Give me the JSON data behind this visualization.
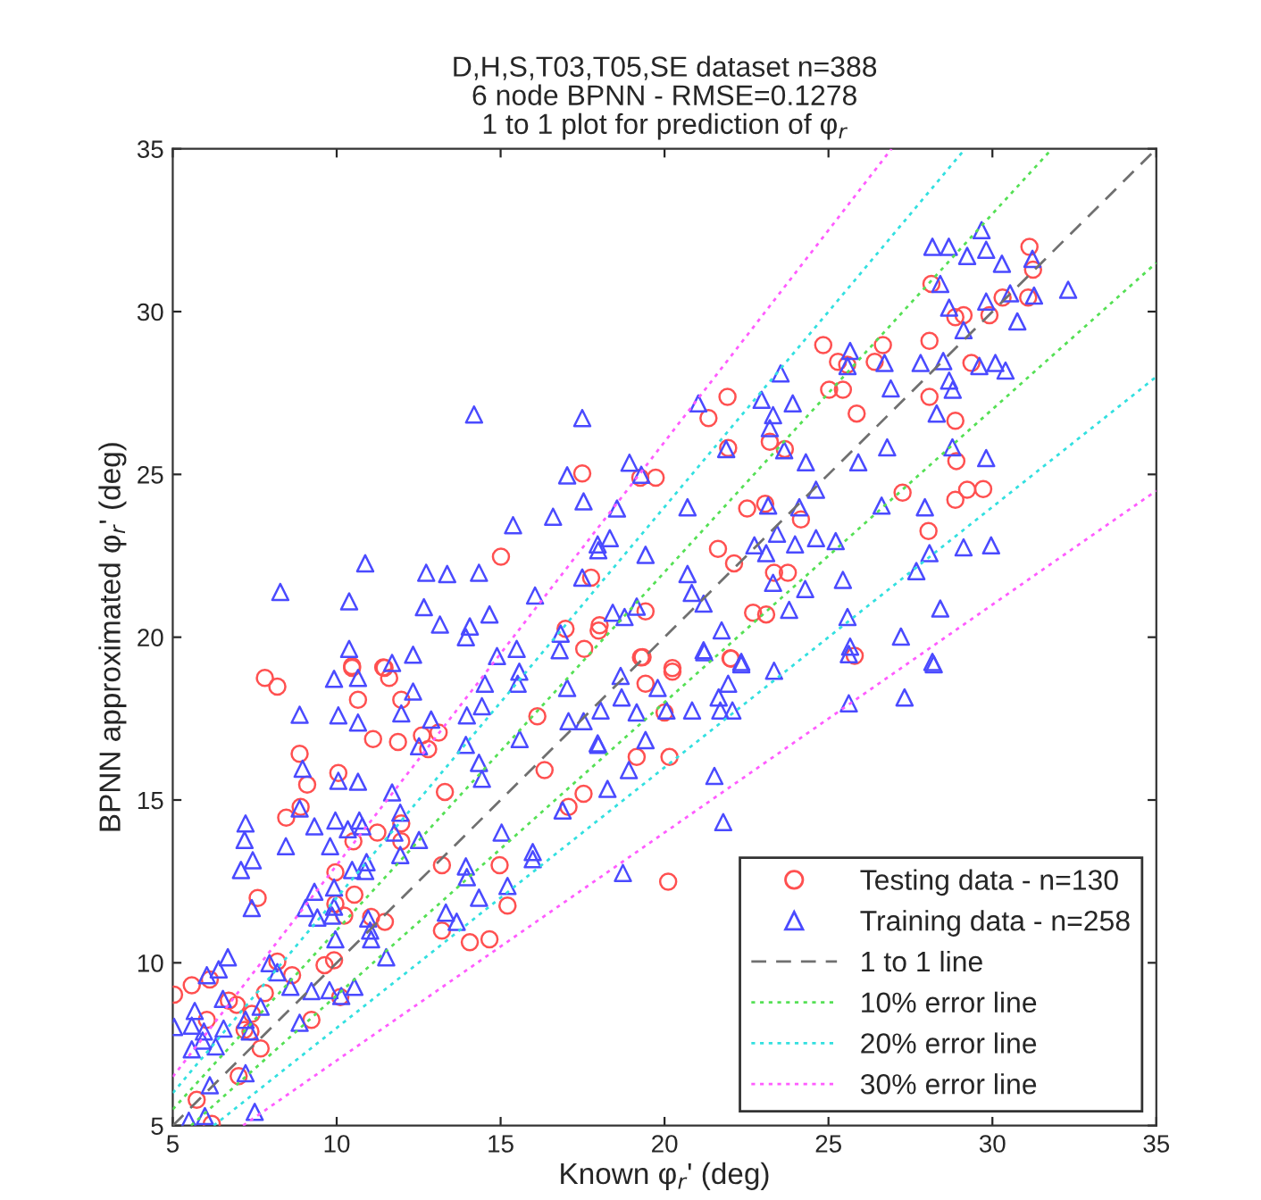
{
  "chart_data": {
    "type": "scatter",
    "title": "D,H,S,T03,T05,SE dataset n=388\n6 node BPNN - RMSE=0.1278\n1 to 1 plot for prediction of φ$_{r}$",
    "xlabel": "Known φ$_{r}$' (deg)",
    "ylabel": "BPNN approximated φ$_{r}$' (deg)",
    "xlim": [
      5,
      35
    ],
    "ylim": [
      5,
      35
    ],
    "xticks": [
      5,
      10,
      15,
      20,
      25,
      30,
      35
    ],
    "yticks": [
      5,
      10,
      15,
      20,
      25,
      30,
      35
    ],
    "grid": false,
    "legend": "bottom right",
    "series": [
      {
        "name": "Testing data - n=130",
        "marker": "circle",
        "color": "#ff5050",
        "x": [
          17.49,
          15.01,
          17.76,
          16.98,
          17.55,
          18.02,
          10.47,
          11.42,
          31.13,
          31.24,
          28.14,
          30.31,
          31.09,
          28.87,
          29.12,
          29.91,
          24.84,
          26.66,
          28.08,
          25.29,
          26.41,
          25.57,
          29.36,
          21.92,
          21.34,
          25.02,
          25.44,
          25.86,
          28.08,
          28.87,
          23.21,
          23.67,
          21.94,
          28.9,
          19.26,
          19.73,
          27.26,
          29.23,
          29.72,
          28.87,
          22.52,
          23.07,
          24.16,
          28.05,
          21.63,
          22.12,
          23.34,
          23.76,
          22.7,
          23.1,
          19.42,
          17.99,
          19.28,
          20.24,
          22.01,
          7.81,
          8.19,
          10.47,
          11.46,
          11.6,
          10.65,
          11.97,
          11.11,
          11.87,
          12.6,
          12.79,
          13.11,
          8.87,
          9.1,
          10.05,
          8.46,
          8.9,
          11.97,
          11.97,
          11.24,
          10.51,
          13.3,
          16.12,
          16.34,
          17.53,
          17.07,
          13.21,
          14.97,
          15.21,
          13.21,
          14.06,
          14.66,
          9.96,
          10.54,
          9.96,
          10.23,
          11.05,
          11.47,
          9.92,
          9.63,
          10.11,
          8.19,
          8.64,
          7.81,
          9.23,
          5.04,
          5.58,
          6.13,
          6.71,
          6.95,
          7.41,
          7.19,
          7.37,
          7.68,
          7.01,
          6.04,
          5.73,
          6.19,
          7.59,
          19.33,
          22.03,
          20.24,
          19.42,
          20.0,
          19.15,
          20.15,
          25.8,
          20.11
        ],
        "values": [
          25.03,
          22.47,
          21.83,
          20.26,
          19.64,
          20.37,
          19.11,
          19.07,
          31.99,
          31.29,
          30.85,
          30.43,
          30.43,
          29.83,
          29.89,
          29.89,
          28.97,
          28.97,
          29.1,
          28.46,
          28.46,
          28.37,
          28.42,
          27.38,
          26.73,
          27.6,
          27.6,
          26.87,
          27.38,
          26.65,
          26.0,
          25.78,
          25.81,
          25.41,
          24.9,
          24.9,
          24.44,
          24.53,
          24.55,
          24.22,
          23.95,
          24.1,
          23.62,
          23.26,
          22.71,
          22.27,
          21.98,
          21.98,
          20.75,
          20.7,
          20.79,
          20.2,
          19.38,
          19.05,
          19.35,
          18.75,
          18.48,
          19.06,
          19.06,
          18.75,
          18.08,
          18.08,
          16.87,
          16.78,
          16.98,
          16.56,
          17.07,
          16.42,
          15.47,
          15.83,
          14.46,
          14.79,
          14.28,
          13.73,
          14.0,
          13.73,
          15.25,
          17.57,
          15.92,
          15.19,
          14.79,
          13.0,
          13.0,
          11.76,
          10.99,
          10.63,
          10.72,
          12.78,
          12.09,
          11.81,
          11.45,
          11.41,
          11.26,
          10.08,
          9.93,
          8.95,
          10.04,
          9.62,
          9.07,
          8.25,
          9.02,
          9.31,
          9.49,
          8.84,
          8.71,
          8.43,
          7.94,
          7.89,
          7.37,
          6.52,
          8.25,
          5.79,
          5.05,
          11.99,
          19.39,
          19.34,
          18.94,
          18.57,
          17.69,
          16.32,
          16.32,
          19.43,
          12.49
        ]
      },
      {
        "name": "Training data - n=258",
        "marker": "triangle",
        "color": "#4a4aff",
        "x": [
          14.19,
          17.49,
          17.03,
          17.53,
          16.6,
          15.38,
          8.28,
          10.87,
          10.38,
          12.73,
          13.37,
          14.34,
          12.66,
          13.15,
          14.06,
          14.66,
          16.05,
          17.49,
          10.38,
          12.33,
          13.94,
          15.49,
          14.89,
          16.8,
          16.83,
          17.98,
          29.67,
          28.17,
          28.67,
          29.23,
          29.81,
          30.29,
          31.22,
          28.41,
          29.81,
          30.54,
          31.27,
          32.31,
          28.68,
          30.76,
          29.12,
          25.66,
          25.58,
          26.71,
          27.81,
          28.5,
          29.6,
          30.09,
          30.4,
          28.68,
          28.79,
          26.9,
          28.3,
          23.54,
          21.03,
          22.96,
          23.91,
          23.31,
          23.21,
          21.88,
          23.65,
          24.31,
          25.91,
          26.79,
          28.78,
          29.81,
          18.93,
          19.29,
          24.62,
          18.55,
          20.7,
          23.16,
          24.11,
          26.62,
          27.94,
          17.96,
          18.33,
          19.42,
          22.74,
          23.1,
          23.43,
          23.98,
          24.62,
          25.22,
          28.08,
          29.12,
          29.96,
          20.7,
          27.68,
          20.83,
          21.19,
          23.31,
          24.29,
          25.44,
          28.41,
          23.8,
          18.42,
          18.78,
          19.15,
          21.74,
          25.58,
          27.21,
          21.19,
          25.66,
          22.34,
          28.17,
          9.92,
          10.65,
          11.69,
          12.33,
          8.87,
          10.05,
          10.65,
          11.97,
          12.88,
          13.97,
          14.43,
          14.52,
          15.52,
          15.57,
          17.03,
          17.07,
          17.53,
          17.98,
          12.51,
          13.94,
          14.34,
          15.58,
          14.43,
          8.96,
          10.05,
          10.65,
          11.69,
          7.22,
          7.19,
          7.44,
          7.08,
          8.45,
          8.87,
          9.32,
          9.96,
          9.8,
          10.34,
          10.69,
          10.78,
          11.94,
          11.76,
          12.51,
          11.94,
          10.47,
          10.91,
          10.87,
          9.32,
          9.92,
          9.92,
          9.86,
          9.05,
          9.41,
          10.96,
          11.02,
          11.05,
          11.51,
          9.96,
          7.41,
          13.94,
          13.97,
          14.34,
          13.33,
          13.66,
          15.03,
          15.21,
          15.98,
          15.98,
          16.89,
          18.26,
          6.68,
          6.4,
          6.04,
          7.95,
          8.19,
          8.59,
          9.23,
          9.78,
          10.14,
          10.54,
          8.87,
          7.68,
          6.53,
          5.67,
          5.58,
          5.04,
          5.95,
          5.91,
          5.58,
          6.31,
          6.55,
          7.22,
          7.35,
          7.22,
          6.13,
          7.5,
          5.49,
          5.98,
          21.21,
          18.66,
          19.79,
          18.69,
          18.05,
          19.15,
          20.06,
          20.84,
          21.65,
          21.94,
          21.7,
          22.07,
          22.34,
          23.34,
          17.96,
          19.42,
          18.91,
          21.52,
          21.79,
          25.62,
          27.32,
          28.21,
          25.62,
          18.73
        ],
        "values": [
          26.84,
          26.73,
          24.97,
          24.17,
          23.7,
          23.44,
          21.39,
          22.27,
          21.1,
          21.98,
          21.94,
          21.98,
          20.92,
          20.39,
          20.33,
          20.7,
          21.28,
          21.83,
          19.64,
          19.46,
          20.0,
          19.64,
          19.42,
          19.6,
          20.11,
          22.67,
          32.5,
          31.99,
          31.99,
          31.71,
          31.9,
          31.47,
          31.62,
          30.85,
          30.31,
          30.56,
          30.49,
          30.67,
          30.12,
          29.7,
          29.43,
          28.79,
          28.33,
          28.42,
          28.42,
          28.48,
          28.33,
          28.42,
          28.19,
          27.88,
          27.6,
          27.64,
          26.87,
          28.1,
          27.18,
          27.29,
          27.18,
          26.82,
          26.42,
          25.78,
          25.74,
          25.37,
          25.37,
          25.83,
          25.83,
          25.5,
          25.36,
          24.99,
          24.53,
          23.95,
          23.99,
          24.04,
          23.99,
          24.04,
          23.99,
          22.85,
          23.04,
          22.53,
          22.82,
          22.58,
          23.18,
          22.85,
          23.04,
          22.95,
          22.58,
          22.76,
          22.82,
          21.94,
          22.03,
          21.36,
          21.03,
          21.67,
          21.48,
          21.76,
          20.88,
          20.84,
          20.75,
          20.62,
          20.94,
          20.21,
          20.62,
          20.02,
          19.6,
          19.71,
          19.24,
          19.24,
          18.72,
          18.75,
          19.21,
          18.33,
          17.62,
          17.6,
          17.38,
          17.66,
          17.47,
          17.6,
          17.88,
          18.57,
          18.57,
          18.94,
          18.44,
          17.42,
          17.42,
          16.69,
          16.65,
          16.69,
          16.14,
          16.87,
          15.65,
          15.96,
          15.59,
          15.56,
          15.23,
          14.28,
          13.77,
          13.15,
          12.85,
          13.58,
          14.74,
          14.19,
          14.37,
          13.58,
          14.1,
          14.37,
          14.19,
          14.61,
          14.0,
          13.77,
          13.31,
          12.85,
          13.09,
          12.82,
          12.18,
          12.31,
          11.72,
          11.45,
          11.68,
          11.39,
          11.36,
          10.99,
          10.72,
          10.17,
          10.72,
          11.68,
          12.96,
          12.63,
          12.0,
          11.54,
          11.26,
          14.0,
          12.36,
          13.4,
          13.18,
          14.68,
          15.34,
          10.17,
          9.8,
          9.62,
          9.99,
          9.71,
          9.26,
          9.13,
          9.16,
          8.98,
          9.26,
          8.16,
          8.65,
          8.89,
          8.52,
          8.07,
          8.03,
          7.89,
          7.61,
          7.34,
          7.43,
          7.98,
          8.25,
          7.89,
          6.61,
          6.24,
          5.42,
          5.15,
          5.29,
          19.54,
          18.81,
          18.44,
          18.15,
          17.75,
          17.69,
          17.75,
          17.75,
          18.15,
          18.57,
          17.75,
          17.75,
          19.17,
          18.97,
          16.74,
          16.84,
          15.92,
          15.74,
          14.32,
          17.97,
          18.15,
          19.17,
          19.48,
          12.76
        ]
      },
      {
        "name": "1 to 1 line",
        "type": "line",
        "marker": "none",
        "line_style": "dashed",
        "color": "#707070",
        "x": [
          5,
          35
        ],
        "values": [
          5,
          35
        ]
      },
      {
        "name": "10% error line",
        "type": "line",
        "marker": "none",
        "line_style": "dotted",
        "color": "#55e055",
        "x": [
          5,
          31.818
        ],
        "values": [
          5.5,
          35
        ]
      },
      {
        "type": "line",
        "marker": "none",
        "line_style": "dotted",
        "color": "#55e055",
        "x": [
          5.556,
          35
        ],
        "values": [
          5,
          31.5
        ]
      },
      {
        "name": "20% error line",
        "type": "line",
        "marker": "none",
        "line_style": "dotted",
        "color": "#33e0e0",
        "x": [
          5,
          29.167
        ],
        "values": [
          6,
          35
        ]
      },
      {
        "type": "line",
        "marker": "none",
        "line_style": "dotted",
        "color": "#33e0e0",
        "x": [
          6.25,
          35
        ],
        "values": [
          5,
          28
        ]
      },
      {
        "name": "30% error line",
        "type": "line",
        "marker": "none",
        "line_style": "dotted",
        "color": "#ff5cff",
        "x": [
          5,
          26.923
        ],
        "values": [
          6.5,
          35
        ]
      },
      {
        "type": "line",
        "marker": "none",
        "line_style": "dotted",
        "color": "#ff5cff",
        "x": [
          7.143,
          35
        ],
        "values": [
          5,
          24.5
        ]
      }
    ]
  }
}
